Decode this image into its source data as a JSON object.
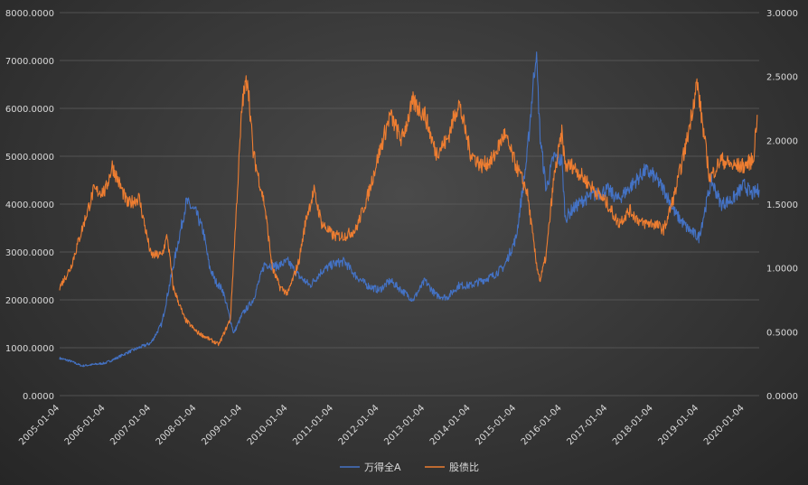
{
  "chart_data": {
    "type": "line",
    "title": "",
    "x_ticks": [
      "2005-01-04",
      "2006-01-04",
      "2007-01-04",
      "2008-01-04",
      "2009-01-04",
      "2010-01-04",
      "2011-01-04",
      "2012-01-04",
      "2013-01-04",
      "2014-01-04",
      "2015-01-04",
      "2016-01-04",
      "2017-01-04",
      "2018-01-04",
      "2019-01-04",
      "2020-01-04"
    ],
    "xlim": [
      "2005-01-04",
      "2020-05-01"
    ],
    "y_left": {
      "min": 0,
      "max": 8000,
      "ticks": [
        "0.0000",
        "1000.0000",
        "2000.0000",
        "3000.0000",
        "4000.0000",
        "5000.0000",
        "6000.0000",
        "7000.0000",
        "8000.0000"
      ]
    },
    "y_right": {
      "min": 0,
      "max": 3,
      "ticks": [
        "0.0000",
        "0.5000",
        "1.0000",
        "1.5000",
        "2.0000",
        "2.5000",
        "3.0000"
      ]
    },
    "grid": true,
    "legend_position": "bottom",
    "series": [
      {
        "name": "万得全A",
        "axis": "left",
        "color": "#4472C4",
        "points": [
          [
            "2005-01-04",
            780
          ],
          [
            "2005-04-01",
            720
          ],
          [
            "2005-07-01",
            620
          ],
          [
            "2005-10-01",
            650
          ],
          [
            "2006-01-04",
            680
          ],
          [
            "2006-04-01",
            780
          ],
          [
            "2006-07-01",
            900
          ],
          [
            "2006-10-01",
            1000
          ],
          [
            "2007-01-04",
            1100
          ],
          [
            "2007-04-01",
            1500
          ],
          [
            "2007-07-01",
            2700
          ],
          [
            "2007-10-15",
            4050
          ],
          [
            "2008-01-04",
            3800
          ],
          [
            "2008-03-01",
            3400
          ],
          [
            "2008-04-15",
            2700
          ],
          [
            "2008-06-01",
            2400
          ],
          [
            "2008-08-01",
            2200
          ],
          [
            "2008-10-28",
            1300
          ],
          [
            "2009-01-04",
            1700
          ],
          [
            "2009-04-01",
            2000
          ],
          [
            "2009-07-01",
            2750
          ],
          [
            "2009-10-01",
            2700
          ],
          [
            "2010-01-04",
            2800
          ],
          [
            "2010-04-01",
            2500
          ],
          [
            "2010-07-01",
            2300
          ],
          [
            "2010-10-01",
            2600
          ],
          [
            "2011-01-04",
            2750
          ],
          [
            "2011-04-01",
            2800
          ],
          [
            "2011-07-01",
            2500
          ],
          [
            "2011-10-01",
            2300
          ],
          [
            "2012-01-04",
            2200
          ],
          [
            "2012-04-01",
            2400
          ],
          [
            "2012-07-01",
            2200
          ],
          [
            "2012-10-01",
            2000
          ],
          [
            "2013-01-04",
            2400
          ],
          [
            "2013-04-01",
            2100
          ],
          [
            "2013-07-01",
            2050
          ],
          [
            "2013-10-01",
            2300
          ],
          [
            "2014-01-04",
            2300
          ],
          [
            "2014-04-01",
            2400
          ],
          [
            "2014-07-01",
            2500
          ],
          [
            "2014-10-01",
            2700
          ],
          [
            "2015-01-04",
            3300
          ],
          [
            "2015-04-01",
            5000
          ],
          [
            "2015-06-12",
            7200
          ],
          [
            "2015-07-15",
            5400
          ],
          [
            "2015-09-01",
            4300
          ],
          [
            "2015-11-01",
            5000
          ],
          [
            "2016-01-04",
            4900
          ],
          [
            "2016-02-01",
            3700
          ],
          [
            "2016-04-01",
            3900
          ],
          [
            "2016-07-01",
            4100
          ],
          [
            "2016-10-01",
            4200
          ],
          [
            "2017-01-04",
            4300
          ],
          [
            "2017-04-01",
            4100
          ],
          [
            "2017-07-01",
            4350
          ],
          [
            "2017-11-01",
            4700
          ],
          [
            "2018-01-04",
            4600
          ],
          [
            "2018-04-01",
            4300
          ],
          [
            "2018-07-01",
            3800
          ],
          [
            "2018-10-01",
            3500
          ],
          [
            "2019-01-04",
            3300
          ],
          [
            "2019-04-15",
            4500
          ],
          [
            "2019-07-01",
            4000
          ],
          [
            "2019-10-01",
            4100
          ],
          [
            "2020-01-04",
            4400
          ],
          [
            "2020-03-01",
            4200
          ],
          [
            "2020-05-01",
            4300
          ]
        ]
      },
      {
        "name": "股债比",
        "axis": "right",
        "color": "#ED7D31",
        "points": [
          [
            "2005-01-04",
            0.85
          ],
          [
            "2005-04-01",
            1.0
          ],
          [
            "2005-07-01",
            1.3
          ],
          [
            "2005-10-01",
            1.6
          ],
          [
            "2006-01-04",
            1.6
          ],
          [
            "2006-03-01",
            1.8
          ],
          [
            "2006-07-01",
            1.5
          ],
          [
            "2006-10-01",
            1.55
          ],
          [
            "2007-01-04",
            1.1
          ],
          [
            "2007-04-01",
            1.1
          ],
          [
            "2007-05-15",
            1.25
          ],
          [
            "2007-07-01",
            0.85
          ],
          [
            "2007-10-01",
            0.6
          ],
          [
            "2008-01-04",
            0.5
          ],
          [
            "2008-04-01",
            0.45
          ],
          [
            "2008-07-01",
            0.4
          ],
          [
            "2008-10-01",
            0.6
          ],
          [
            "2008-12-01",
            1.7
          ],
          [
            "2009-01-04",
            2.3
          ],
          [
            "2009-02-15",
            2.5
          ],
          [
            "2009-04-01",
            1.9
          ],
          [
            "2009-07-01",
            1.5
          ],
          [
            "2009-09-01",
            1.0
          ],
          [
            "2009-11-01",
            0.85
          ],
          [
            "2010-01-04",
            0.8
          ],
          [
            "2010-04-01",
            1.05
          ],
          [
            "2010-06-01",
            1.4
          ],
          [
            "2010-08-01",
            1.6
          ],
          [
            "2010-10-01",
            1.35
          ],
          [
            "2011-01-04",
            1.25
          ],
          [
            "2011-04-01",
            1.25
          ],
          [
            "2011-07-01",
            1.3
          ],
          [
            "2011-10-01",
            1.55
          ],
          [
            "2012-01-04",
            1.9
          ],
          [
            "2012-04-01",
            2.2
          ],
          [
            "2012-07-01",
            2.0
          ],
          [
            "2012-10-01",
            2.3
          ],
          [
            "2013-01-04",
            2.2
          ],
          [
            "2013-04-01",
            1.9
          ],
          [
            "2013-07-01",
            2.0
          ],
          [
            "2013-10-01",
            2.3
          ],
          [
            "2014-01-04",
            1.9
          ],
          [
            "2014-04-01",
            1.8
          ],
          [
            "2014-07-01",
            1.85
          ],
          [
            "2014-10-01",
            2.05
          ],
          [
            "2015-01-04",
            1.8
          ],
          [
            "2015-04-01",
            1.6
          ],
          [
            "2015-06-12",
            1.05
          ],
          [
            "2015-07-15",
            0.9
          ],
          [
            "2015-09-01",
            1.1
          ],
          [
            "2015-11-01",
            1.7
          ],
          [
            "2016-01-04",
            2.05
          ],
          [
            "2016-02-01",
            1.8
          ],
          [
            "2016-04-01",
            1.8
          ],
          [
            "2016-07-01",
            1.7
          ],
          [
            "2016-10-01",
            1.6
          ],
          [
            "2017-01-04",
            1.5
          ],
          [
            "2017-04-01",
            1.35
          ],
          [
            "2017-07-01",
            1.45
          ],
          [
            "2017-10-01",
            1.35
          ],
          [
            "2018-01-04",
            1.35
          ],
          [
            "2018-04-01",
            1.3
          ],
          [
            "2018-07-01",
            1.6
          ],
          [
            "2018-10-01",
            2.0
          ],
          [
            "2018-12-20",
            2.45
          ],
          [
            "2019-01-04",
            2.35
          ],
          [
            "2019-04-01",
            1.7
          ],
          [
            "2019-07-01",
            1.85
          ],
          [
            "2019-10-01",
            1.8
          ],
          [
            "2020-01-04",
            1.8
          ],
          [
            "2020-03-15",
            1.85
          ],
          [
            "2020-04-15",
            2.2
          ]
        ]
      }
    ]
  }
}
